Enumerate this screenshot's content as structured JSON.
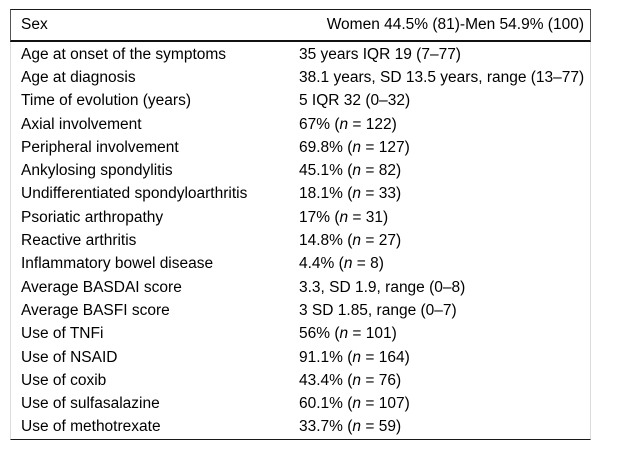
{
  "page": {
    "background_color": "#ffffff",
    "text_color": "#000000",
    "rule_color": "#1a1a1a",
    "side_border_color": "#dcdcdc"
  },
  "table": {
    "header": {
      "label": "Sex",
      "value": "Women 44.5% (81)-Men 54.9% (100)"
    },
    "rows": [
      {
        "label": "Age at onset of the symptoms",
        "value": "35 years IQR 19 (7–77)"
      },
      {
        "label": "Age at diagnosis",
        "value": "38.1 years, SD 13.5 years, range (13–77)"
      },
      {
        "label": "Time of evolution (years)",
        "value": "5 IQR 32 (0–32)"
      },
      {
        "label": "Axial involvement",
        "value": "67% (n = 122)"
      },
      {
        "label": "Peripheral involvement",
        "value": "69.8% (n = 127)"
      },
      {
        "label": "Ankylosing spondylitis",
        "value": "45.1% (n = 82)"
      },
      {
        "label": "Undifferentiated spondyloarthritis",
        "value": "18.1% (n = 33)"
      },
      {
        "label": "Psoriatic arthropathy",
        "value": "17% (n = 31)"
      },
      {
        "label": "Reactive arthritis",
        "value": "14.8% (n = 27)"
      },
      {
        "label": "Inflammatory bowel disease",
        "value": "4.4% (n = 8)"
      },
      {
        "label": "Average BASDAI score",
        "value": "3.3, SD 1.9, range (0–8)"
      },
      {
        "label": "Average BASFI score",
        "value": "3 SD 1.85, range (0–7)"
      },
      {
        "label": "Use of TNFi",
        "value": "56% (n = 101)"
      },
      {
        "label": "Use of NSAID",
        "value": "91.1% (n = 164)"
      },
      {
        "label": "Use of coxib",
        "value": "43.4% (n = 76)"
      },
      {
        "label": "Use of sulfasalazine",
        "value": "60.1% (n = 107)"
      },
      {
        "label": "Use of methotrexate",
        "value": "33.7% (n = 59)"
      }
    ]
  }
}
